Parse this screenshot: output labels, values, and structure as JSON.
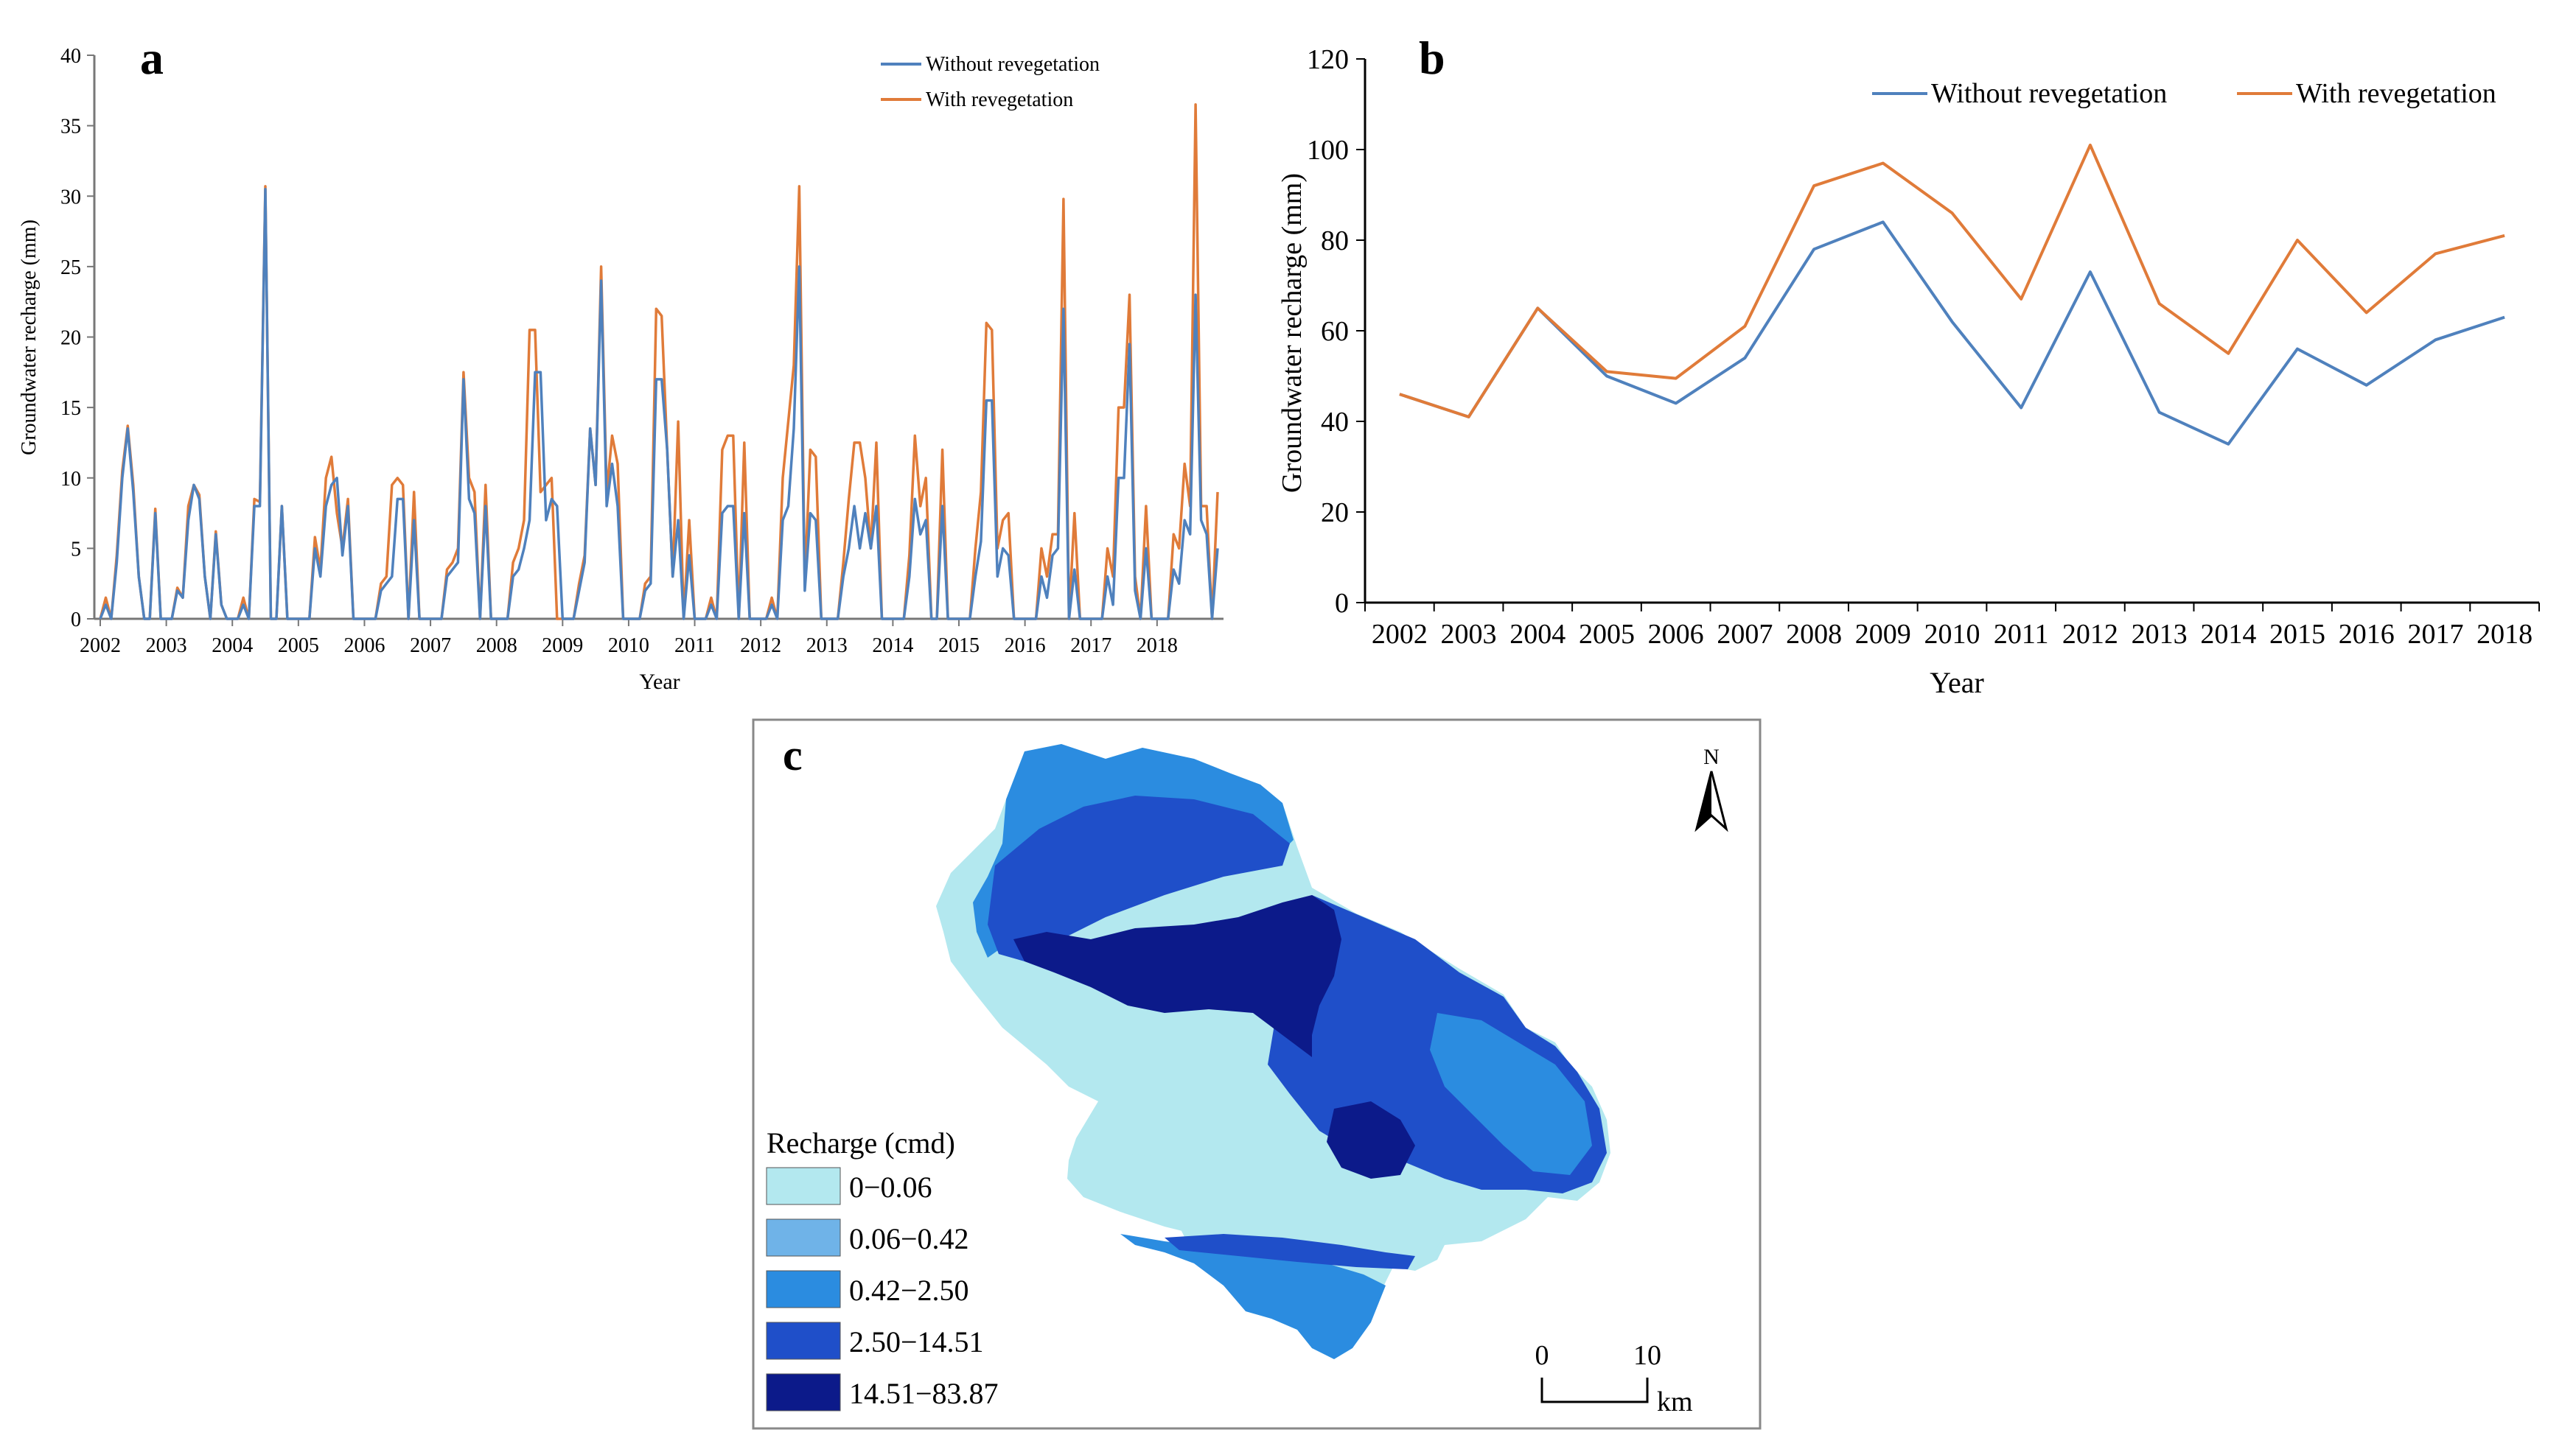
{
  "colors": {
    "without": "#4f81bd",
    "with": "#e07b39",
    "legend": [
      "#b3e8ef",
      "#6fb3e8",
      "#2b8ce0",
      "#1f4fc9",
      "#0c1a8a"
    ]
  },
  "chart_data": [
    {
      "panel": "a",
      "type": "line",
      "title": "",
      "panel_letter": "a",
      "xlabel": "Year",
      "ylabel": "Groundwater recharge (mm)",
      "ylim": [
        0,
        40
      ],
      "yticks": [
        0,
        5,
        10,
        15,
        20,
        25,
        30,
        35,
        40
      ],
      "year_ticks": [
        "2002",
        "2003",
        "2004",
        "2005",
        "2006",
        "2007",
        "2008",
        "2009",
        "2010",
        "2011",
        "2012",
        "2013",
        "2014",
        "2015",
        "2016",
        "2017",
        "2018"
      ],
      "x_start": 2002,
      "months_per_point": 1,
      "legend_position": "top-right",
      "series": [
        {
          "name": "Without revegetation",
          "key": "without",
          "values": [
            0,
            1,
            0,
            4,
            10,
            13.5,
            9,
            3,
            0,
            0,
            7.5,
            0,
            0,
            0,
            2,
            1.5,
            7,
            9.5,
            8.5,
            3,
            0,
            6,
            1,
            0,
            0,
            0,
            1,
            0,
            8,
            8,
            30.5,
            0,
            0,
            8,
            0,
            0,
            0,
            0,
            0,
            5,
            3,
            8,
            9.5,
            10,
            4.5,
            8,
            0,
            0,
            0,
            0,
            0,
            2,
            2.5,
            3,
            8.5,
            8.5,
            0,
            7,
            0,
            0,
            0,
            0,
            0,
            3,
            3.5,
            4,
            17,
            8.5,
            7.5,
            0,
            8,
            0,
            0,
            0,
            0,
            3,
            3.5,
            5,
            7,
            17.5,
            17.5,
            7,
            8.5,
            8,
            0,
            0,
            0,
            2,
            4,
            13.5,
            9.5,
            24,
            8,
            11,
            8,
            0,
            0,
            0,
            0,
            2,
            2.5,
            17,
            17,
            12,
            3,
            7,
            0,
            4.5,
            0,
            0,
            0,
            1,
            0,
            7.5,
            8,
            8,
            0,
            7.5,
            0,
            0,
            0,
            0,
            1,
            0,
            7,
            8,
            13.5,
            25,
            2,
            7.5,
            7,
            0,
            0,
            0,
            0,
            3,
            5,
            8,
            5,
            7.5,
            5,
            8,
            0,
            0,
            0,
            0,
            0,
            3,
            8.5,
            6,
            7,
            0,
            0,
            8,
            0,
            0,
            0,
            0,
            0,
            3,
            5.5,
            15.5,
            15.5,
            3,
            5,
            4.5,
            0,
            0,
            0,
            0,
            0,
            3,
            1.5,
            4.5,
            5,
            22,
            0,
            3.5,
            0,
            0,
            0,
            0,
            0,
            3,
            1,
            10,
            10,
            19.5,
            2,
            0,
            5,
            0,
            0,
            0,
            0,
            3.5,
            2.5,
            7,
            6,
            23,
            7,
            6,
            0,
            5
          ]
        },
        {
          "name": "With revegetation",
          "key": "with",
          "values": [
            0,
            1.5,
            0,
            4.5,
            10.5,
            13.7,
            9.5,
            3,
            0,
            0,
            7.8,
            0,
            0,
            0,
            2.2,
            1.5,
            8,
            9.5,
            8.8,
            3,
            0,
            6.2,
            1,
            0,
            0,
            0,
            1.5,
            0,
            8.5,
            8.3,
            30.7,
            0,
            0,
            8,
            0,
            0,
            0,
            0,
            0,
            5.8,
            3.5,
            10,
            11.5,
            7.5,
            5,
            8.5,
            0,
            0,
            0,
            0,
            0,
            2.5,
            3,
            9.5,
            10,
            9.5,
            0,
            9,
            0,
            0,
            0,
            0,
            0,
            3.5,
            4,
            5,
            17.5,
            10,
            9,
            0,
            9.5,
            0,
            0,
            0,
            0,
            4,
            5,
            7,
            20.5,
            20.5,
            9,
            9.5,
            10,
            0,
            0,
            0,
            0,
            2.5,
            4.5,
            13.5,
            9.5,
            25,
            9,
            13,
            11,
            0,
            0,
            0,
            0,
            2.5,
            3,
            22,
            21.5,
            12,
            3,
            14,
            0,
            7,
            0,
            0,
            0,
            1.5,
            0,
            12,
            13,
            13,
            0,
            12.5,
            0,
            0,
            0,
            0,
            1.5,
            0,
            10,
            14,
            18,
            30.7,
            2.5,
            12,
            11.5,
            0,
            0,
            0,
            0,
            4,
            8.5,
            12.5,
            12.5,
            10,
            5,
            12.5,
            0,
            0,
            0,
            0,
            0,
            4.5,
            13,
            8,
            10,
            0,
            0,
            12,
            0,
            0,
            0,
            0,
            0,
            5,
            9,
            21,
            20.5,
            5,
            7,
            7.5,
            0,
            0,
            0,
            0,
            0,
            5,
            3,
            6,
            6,
            29.8,
            0,
            7.5,
            0,
            0,
            0,
            0,
            0,
            5,
            3,
            15,
            15,
            23,
            3,
            0,
            8,
            0,
            0,
            0,
            0,
            6,
            5,
            11,
            8,
            36.5,
            8,
            8,
            0,
            9
          ]
        }
      ]
    },
    {
      "panel": "b",
      "type": "line",
      "title": "",
      "panel_letter": "b",
      "xlabel": "Year",
      "ylabel": "Groundwater recharge (mm)",
      "ylim": [
        0,
        120
      ],
      "yticks": [
        0,
        20,
        40,
        60,
        80,
        100,
        120
      ],
      "categories": [
        "2002",
        "2003",
        "2004",
        "2005",
        "2006",
        "2007",
        "2008",
        "2009",
        "2010",
        "2011",
        "2012",
        "2013",
        "2014",
        "2015",
        "2016",
        "2017",
        "2018"
      ],
      "legend_position": "top",
      "series": [
        {
          "name": "Without revegetation",
          "key": "without",
          "values": [
            46,
            41,
            65,
            50,
            44,
            54,
            78,
            84,
            62,
            43,
            73,
            42,
            35,
            56,
            48,
            58,
            63
          ]
        },
        {
          "name": "With revegetation",
          "key": "with",
          "values": [
            46,
            41,
            65,
            51,
            49.5,
            61,
            92,
            97,
            86,
            67,
            101,
            66,
            55,
            80,
            64,
            77,
            81
          ]
        }
      ]
    }
  ],
  "map": {
    "panel_letter": "c",
    "north_label": "N",
    "legend_title": "Recharge (cmd)",
    "legend_items": [
      "0−0.06",
      "0.06−0.42",
      "0.42−2.50",
      "2.50−14.51",
      "14.51−83.87"
    ],
    "scale_labels": [
      "0",
      "10"
    ],
    "scale_unit": "km"
  }
}
